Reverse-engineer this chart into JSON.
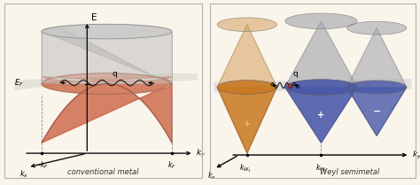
{
  "background_color": "#faf5eb",
  "border_color": "#b0b0b0",
  "left_panel": {
    "label": "conventional metal",
    "cup_fill_color": "#c85a3a",
    "cup_gray_color": "#b8b8b8",
    "cup_gray_alpha": 0.55,
    "fermi_plane_color": "#c8c0a0",
    "fermi_plane_alpha": 0.35,
    "wavy_color": "#1a1a1a",
    "axis_color": "#111111",
    "dashed_color": "#888888",
    "EF_label": "$E_F$",
    "q_label": "q",
    "ky_label": "$k_y$",
    "kx_label": "$k_x$",
    "E_label": "E",
    "kF_neg_label": "$-k_F$",
    "kF_pos_label": "$k_F$"
  },
  "right_panel": {
    "label": "Weyl semimetal",
    "cone_amber_color": "#c87820",
    "cone_amber_top_color": "#d4a060",
    "cone_blue_color": "#4858a8",
    "cone_blue_top_color": "#9095c0",
    "cone_gray_color": "#a8a8b0",
    "fermi_plane_color": "#b8b8d0",
    "fermi_plane_alpha": 0.35,
    "wavy_color": "#1a1a1a",
    "cross_color": "#cc2222",
    "ky_label": "$k_y$",
    "kx_label": "$k_x$",
    "kW1_label": "$k_{W_1}$",
    "kW2_label": "$k_{W_2}$",
    "q_label": "q",
    "plus_label": "+",
    "minus_label": "−"
  }
}
